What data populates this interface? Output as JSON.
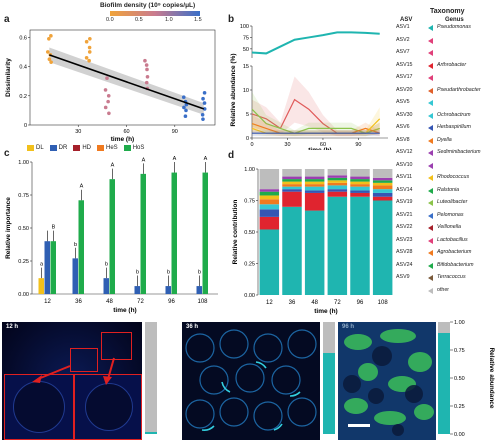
{
  "figure": {
    "panel_labels": [
      "a",
      "b",
      "c",
      "d",
      "e"
    ]
  },
  "panel_a": {
    "colorbar_title": "Biofilm density (10⁹ copies/μL)",
    "colorbar_ticks": [
      "0.0",
      "0.5",
      "1.0",
      "1.5"
    ],
    "colors": {
      "low": "#f0a33a",
      "mid": "#c97b8f",
      "high": "#3a6fc8"
    }
  },
  "panel_b": {
    "genus_header": "Genus",
    "asv_header": "ASV"
  },
  "panel_c": {
    "legend": [
      {
        "label": "DL",
        "color": "#f2c01b"
      },
      {
        "label": "DR",
        "color": "#2f5fb3"
      },
      {
        "label": "HD",
        "color": "#a5202a"
      },
      {
        "label": "HeS",
        "color": "#f07a1f"
      },
      {
        "label": "HoS",
        "color": "#1fab4b"
      }
    ]
  },
  "panel_d": {},
  "taxonomy": {
    "title": "Taxonomy",
    "asv_header": "ASV",
    "genus_header": "Genus",
    "rows": [
      {
        "asv": "ASV1",
        "genus": "Pseudomonas",
        "color": "#1fb5b0"
      },
      {
        "asv": "ASV2",
        "genus": "",
        "color": "#e0407a"
      },
      {
        "asv": "ASV7",
        "genus": "",
        "color": "#e0407a"
      },
      {
        "asv": "ASV15",
        "genus": "Arthrobacter",
        "color": "#e0242f"
      },
      {
        "asv": "ASV17",
        "genus": "",
        "color": "#e0407a"
      },
      {
        "asv": "ASV20",
        "genus": "Pseudarthrobacter",
        "color": "#e0602a"
      },
      {
        "asv": "ASV5",
        "genus": "",
        "color": "#35c7d3"
      },
      {
        "asv": "ASV30",
        "genus": "Ochrobactrum",
        "color": "#35c7d3"
      },
      {
        "asv": "ASV6",
        "genus": "Herbaspirillum",
        "color": "#3556b3"
      },
      {
        "asv": "ASV8",
        "genus": "Dyella",
        "color": "#f07a1f"
      },
      {
        "asv": "ASV12",
        "genus": "Sediminibacterium",
        "color": "#9b3fb0"
      },
      {
        "asv": "ASV10",
        "genus": "",
        "color": "#9b3fb0"
      },
      {
        "asv": "ASV11",
        "genus": "Rhodococcus",
        "color": "#f2c01b"
      },
      {
        "asv": "ASV14",
        "genus": "Ralstonia",
        "color": "#1fab4b"
      },
      {
        "asv": "ASV19",
        "genus": "Luteolibacter",
        "color": "#8bc34a"
      },
      {
        "asv": "ASV21",
        "genus": "Pelomonas",
        "color": "#3a6fc8"
      },
      {
        "asv": "ASV22",
        "genus": "Veillonella",
        "color": "#a5202a"
      },
      {
        "asv": "ASV23",
        "genus": "Lactobacillus",
        "color": "#e0407a"
      },
      {
        "asv": "ASV28",
        "genus": "Agrobacterium",
        "color": "#f07a1f"
      },
      {
        "asv": "ASV24",
        "genus": "Bifidobacterium",
        "color": "#1fab4b"
      },
      {
        "asv": "ASV9",
        "genus": "Terracoccus",
        "color": "#7a5a3a"
      },
      {
        "asv": "",
        "genus": "other",
        "color": "#bdbdbd"
      }
    ]
  },
  "panel_e": {
    "labels": [
      "12 h",
      "36 h",
      "96 h"
    ],
    "bar_axis_label": "Relative abundance",
    "bar_ticks": [
      "0.00",
      "0.25",
      "0.50",
      "0.75",
      "1.00"
    ],
    "bar_teal_fraction": [
      0.02,
      0.72,
      0.9
    ]
  },
  "chart_data": [
    {
      "panel": "a",
      "type": "scatter",
      "xlabel": "time (h)",
      "ylabel": "Dissimilarity",
      "xlim": [
        0,
        115
      ],
      "ylim": [
        0,
        0.65
      ],
      "xticks": [
        30,
        60,
        90
      ],
      "yticks": [
        0,
        0.2,
        0.4,
        0.6
      ],
      "points": [
        {
          "x": 12,
          "y": 0.61,
          "c": "low"
        },
        {
          "x": 12,
          "y": 0.59,
          "c": "low"
        },
        {
          "x": 12,
          "y": 0.5,
          "c": "low"
        },
        {
          "x": 12,
          "y": 0.48,
          "c": "low"
        },
        {
          "x": 12,
          "y": 0.45,
          "c": "low"
        },
        {
          "x": 12,
          "y": 0.43,
          "c": "low"
        },
        {
          "x": 36,
          "y": 0.59,
          "c": "low"
        },
        {
          "x": 36,
          "y": 0.57,
          "c": "low"
        },
        {
          "x": 36,
          "y": 0.53,
          "c": "low"
        },
        {
          "x": 36,
          "y": 0.5,
          "c": "low"
        },
        {
          "x": 36,
          "y": 0.46,
          "c": "low"
        },
        {
          "x": 36,
          "y": 0.44,
          "c": "low"
        },
        {
          "x": 48,
          "y": 0.32,
          "c": "mid"
        },
        {
          "x": 48,
          "y": 0.24,
          "c": "mid"
        },
        {
          "x": 48,
          "y": 0.2,
          "c": "mid"
        },
        {
          "x": 48,
          "y": 0.16,
          "c": "mid"
        },
        {
          "x": 48,
          "y": 0.12,
          "c": "mid"
        },
        {
          "x": 48,
          "y": 0.08,
          "c": "mid"
        },
        {
          "x": 72,
          "y": 0.44,
          "c": "mid"
        },
        {
          "x": 72,
          "y": 0.41,
          "c": "mid"
        },
        {
          "x": 72,
          "y": 0.38,
          "c": "mid"
        },
        {
          "x": 72,
          "y": 0.33,
          "c": "mid"
        },
        {
          "x": 72,
          "y": 0.29,
          "c": "mid"
        },
        {
          "x": 72,
          "y": 0.25,
          "c": "mid"
        },
        {
          "x": 96,
          "y": 0.19,
          "c": "high"
        },
        {
          "x": 96,
          "y": 0.16,
          "c": "high"
        },
        {
          "x": 96,
          "y": 0.14,
          "c": "high"
        },
        {
          "x": 96,
          "y": 0.12,
          "c": "high"
        },
        {
          "x": 96,
          "y": 0.1,
          "c": "high"
        },
        {
          "x": 96,
          "y": 0.06,
          "c": "high"
        },
        {
          "x": 108,
          "y": 0.22,
          "c": "high"
        },
        {
          "x": 108,
          "y": 0.18,
          "c": "high"
        },
        {
          "x": 108,
          "y": 0.15,
          "c": "high"
        },
        {
          "x": 108,
          "y": 0.11,
          "c": "high"
        },
        {
          "x": 108,
          "y": 0.07,
          "c": "high"
        },
        {
          "x": 108,
          "y": 0.04,
          "c": "high"
        }
      ],
      "fit": {
        "x": [
          12,
          108
        ],
        "y": [
          0.48,
          0.11
        ]
      }
    },
    {
      "panel": "b",
      "type": "line",
      "ylabel": "Relative abundance (%)",
      "x": [
        0,
        12,
        24,
        36,
        48,
        60,
        72,
        84,
        96,
        108
      ],
      "xticks": [
        0,
        30,
        60,
        90
      ],
      "xlabel_ticks": true,
      "top": {
        "ylim": [
          30,
          100
        ],
        "yticks": [
          50,
          75,
          100
        ],
        "values": [
          42,
          40,
          55,
          70,
          75,
          80,
          86,
          86,
          85,
          83
        ],
        "color": "#1fb5b0"
      },
      "bottom": {
        "ylim": [
          0,
          15
        ],
        "yticks": [
          0,
          5,
          10,
          15
        ],
        "series": [
          {
            "values": [
              5,
              4,
              2,
              8,
              6,
              3,
              1,
              1,
              1,
              2
            ],
            "color": "#e05a5a"
          },
          {
            "values": [
              6,
              3,
              2,
              1,
              2,
              2,
              2,
              2,
              1,
              2
            ],
            "color": "#8bc34a"
          },
          {
            "values": [
              3,
              2,
              1,
              1,
              1,
              1,
              1,
              1,
              2,
              1
            ],
            "color": "#f07a1f"
          },
          {
            "values": [
              2,
              1,
              1,
              1,
              1,
              1,
              1,
              1,
              1,
              4
            ],
            "color": "#f2c01b"
          },
          {
            "values": [
              1,
              1,
              1,
              1,
              1,
              1,
              1,
              1,
              1,
              1
            ],
            "color": "#3556b3"
          }
        ]
      }
    },
    {
      "panel": "c",
      "type": "bar",
      "xlabel": "time (h)",
      "ylabel": "Relative importance",
      "categories": [
        "12",
        "36",
        "48",
        "72",
        "96",
        "108"
      ],
      "ylim": [
        0,
        1.0
      ],
      "yticks": [
        0,
        0.25,
        0.5,
        0.75,
        1.0
      ],
      "ytick_labels": [
        "0.00",
        "0.25",
        "0.50",
        "0.75",
        "1.00"
      ],
      "series": [
        {
          "name": "DL",
          "values": [
            0.12,
            0.0,
            0.0,
            0.0,
            0.0,
            0.0
          ]
        },
        {
          "name": "DR",
          "values": [
            0.4,
            0.27,
            0.12,
            0.06,
            0.06,
            0.06
          ]
        },
        {
          "name": "HD",
          "values": [
            0.0,
            0.0,
            0.0,
            0.0,
            0.0,
            0.0
          ]
        },
        {
          "name": "HeS",
          "values": [
            0.0,
            0.0,
            0.0,
            0.0,
            0.0,
            0.0
          ]
        },
        {
          "name": "HoS",
          "values": [
            0.4,
            0.71,
            0.87,
            0.91,
            0.92,
            0.92
          ]
        }
      ],
      "letters": [
        {
          "cat": "12",
          "series": "HoS",
          "text": "B"
        },
        {
          "cat": "12",
          "series": "DL",
          "text": "a"
        },
        {
          "cat": "36",
          "series": "HoS",
          "text": "A"
        },
        {
          "cat": "36",
          "series": "DR",
          "text": "b"
        },
        {
          "cat": "48",
          "series": "HoS",
          "text": "A"
        },
        {
          "cat": "48",
          "series": "DR",
          "text": "b"
        },
        {
          "cat": "72",
          "series": "HoS",
          "text": "A"
        },
        {
          "cat": "72",
          "series": "DR",
          "text": "b"
        },
        {
          "cat": "96",
          "series": "HoS",
          "text": "A"
        },
        {
          "cat": "96",
          "series": "DR",
          "text": "b"
        },
        {
          "cat": "108",
          "series": "HoS",
          "text": "A"
        },
        {
          "cat": "108",
          "series": "DR",
          "text": "b"
        }
      ]
    },
    {
      "panel": "d",
      "type": "bar",
      "stacked": true,
      "xlabel": "time (h)",
      "ylabel": "Relative contribution",
      "categories": [
        "12",
        "36",
        "48",
        "72",
        "96",
        "108"
      ],
      "ylim": [
        0,
        1.0
      ],
      "yticks": [
        0,
        0.25,
        0.5,
        0.75,
        1.0
      ],
      "ytick_labels": [
        "0.00",
        "0.25",
        "0.50",
        "0.75",
        "1.00"
      ],
      "stack": [
        {
          "color": "#1fb5b0",
          "values": [
            0.52,
            0.7,
            0.67,
            0.78,
            0.78,
            0.75
          ]
        },
        {
          "color": "#e0242f",
          "values": [
            0.1,
            0.12,
            0.14,
            0.04,
            0.03,
            0.03
          ]
        },
        {
          "color": "#3556b3",
          "values": [
            0.06,
            0.02,
            0.02,
            0.02,
            0.02,
            0.03
          ]
        },
        {
          "color": "#35c7d3",
          "values": [
            0.04,
            0.02,
            0.03,
            0.03,
            0.03,
            0.03
          ]
        },
        {
          "color": "#f07a1f",
          "values": [
            0.04,
            0.02,
            0.02,
            0.02,
            0.02,
            0.03
          ]
        },
        {
          "color": "#f2c01b",
          "values": [
            0.03,
            0.02,
            0.02,
            0.02,
            0.02,
            0.02
          ]
        },
        {
          "color": "#1fab4b",
          "values": [
            0.03,
            0.02,
            0.02,
            0.02,
            0.02,
            0.02
          ]
        },
        {
          "color": "#9b3fb0",
          "values": [
            0.02,
            0.02,
            0.02,
            0.02,
            0.02,
            0.02
          ]
        },
        {
          "color": "#bdbdbd",
          "values": [
            0.16,
            0.06,
            0.06,
            0.05,
            0.06,
            0.07
          ]
        }
      ]
    }
  ]
}
